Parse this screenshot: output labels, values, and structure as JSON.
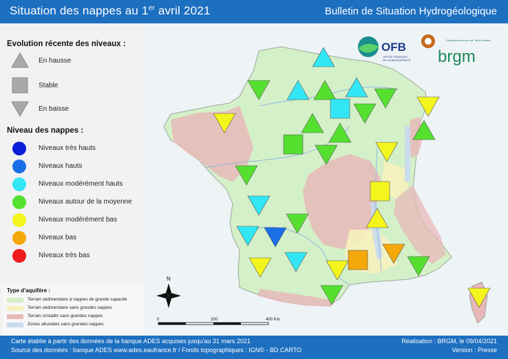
{
  "header": {
    "title_main": "Situation des nappes au 1",
    "title_sup": "er",
    "title_end": " avril 2021",
    "subtitle": "Bulletin de Situation Hydrogéologique"
  },
  "legend": {
    "evolution_title": "Evolution récente des niveaux :",
    "evolution_items": [
      {
        "label": "En hausse",
        "shape": "triangle-up"
      },
      {
        "label": "Stable",
        "shape": "square"
      },
      {
        "label": "En baisse",
        "shape": "triangle-down"
      }
    ],
    "niveau_title": "Niveau des nappes :",
    "niveau_items": [
      {
        "label": "Niveaux très hauts",
        "color": "#0a1fd8"
      },
      {
        "label": "Niveaux hauts",
        "color": "#1a6fe8"
      },
      {
        "label": "Niveaux modérément hauts",
        "color": "#33e6f5"
      },
      {
        "label": "Niveaux autour de la moyenne",
        "color": "#55e030"
      },
      {
        "label": "Niveaux modérément bas",
        "color": "#f5f51e"
      },
      {
        "label": "Niveaux bas",
        "color": "#f5a80a"
      },
      {
        "label": "Niveaux très bas",
        "color": "#ee1c1c"
      }
    ],
    "aquifer_title": "Type d'aquifère :",
    "aquifer_items": [
      {
        "label": "Terrain sédimentaire à nappes de grande capacité",
        "color": "#d4f0c8"
      },
      {
        "label": "Terrain sédimentaire sans grandes nappes",
        "color": "#f6f1bc"
      },
      {
        "label": "Terrain cristallin sans grandes nappes",
        "color": "#e8b8b8"
      },
      {
        "label": "Zones alluviales sans grandes nappes",
        "color": "#c8daf0"
      }
    ]
  },
  "logos": {
    "ofb": "OFB",
    "ofb_sub1": "OFFICE FRANÇAIS",
    "ofb_sub2": "DE LA BIODIVERSITÉ",
    "brgm": "brgm",
    "brgm_tagline": "Géosciences pour une Terre durable"
  },
  "scale": {
    "labels": [
      "0",
      "200",
      "400 Km"
    ]
  },
  "compass": {
    "north": "N"
  },
  "map_markers": [
    {
      "shape": "triangle-up",
      "color": "#33e6f5"
    },
    {
      "shape": "triangle-down",
      "color": "#55e030"
    },
    {
      "shape": "triangle-up",
      "color": "#33e6f5"
    },
    {
      "shape": "triangle-up",
      "color": "#55e030"
    },
    {
      "shape": "triangle-up",
      "color": "#33e6f5"
    },
    {
      "shape": "triangle-down",
      "color": "#55e030"
    },
    {
      "shape": "square",
      "color": "#33e6f5"
    },
    {
      "shape": "triangle-down",
      "color": "#55e030"
    },
    {
      "shape": "triangle-down",
      "color": "#f5f51e"
    },
    {
      "shape": "triangle-down",
      "color": "#f5f51e"
    },
    {
      "shape": "triangle-up",
      "color": "#55e030"
    },
    {
      "shape": "triangle-up",
      "color": "#55e030"
    },
    {
      "shape": "triangle-up",
      "color": "#55e030"
    },
    {
      "shape": "square",
      "color": "#55e030"
    },
    {
      "shape": "triangle-down",
      "color": "#55e030"
    },
    {
      "shape": "triangle-down",
      "color": "#f5f51e"
    },
    {
      "shape": "triangle-down",
      "color": "#55e030"
    },
    {
      "shape": "square",
      "color": "#f5f51e"
    },
    {
      "shape": "triangle-down",
      "color": "#33e6f5"
    },
    {
      "shape": "triangle-up",
      "color": "#f5f51e"
    },
    {
      "shape": "triangle-down",
      "color": "#55e030"
    },
    {
      "shape": "triangle-down",
      "color": "#33e6f5"
    },
    {
      "shape": "triangle-down",
      "color": "#1a6fe8"
    },
    {
      "shape": "triangle-down",
      "color": "#f5f51e"
    },
    {
      "shape": "triangle-down",
      "color": "#33e6f5"
    },
    {
      "shape": "triangle-down",
      "color": "#f5f51e"
    },
    {
      "shape": "square",
      "color": "#f5a80a"
    },
    {
      "shape": "triangle-down",
      "color": "#f5a80a"
    },
    {
      "shape": "triangle-down",
      "color": "#55e030"
    },
    {
      "shape": "triangle-down",
      "color": "#55e030"
    },
    {
      "shape": "triangle-down",
      "color": "#f5f51e"
    }
  ],
  "footer": {
    "line1_left": "Carte établie à partir des données de la banque ADES acquises jusqu'au 31 mars 2021",
    "line2_left": "Source des données : banque ADES www.ades.eaufrance.fr / Fonds topographiques : IGN© - BD CARTO",
    "line1_right": "Réalisation : BRGM, le 09/04/2021",
    "line2_right": "Version : Presse"
  }
}
